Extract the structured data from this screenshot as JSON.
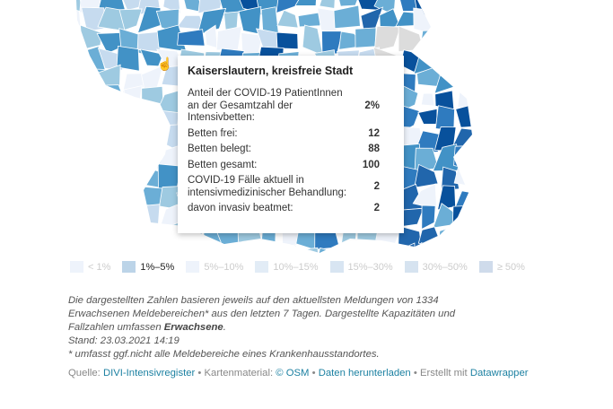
{
  "tooltip": {
    "title": "Kaiserslautern, kreisfreie Stadt",
    "rows": [
      {
        "label": "Anteil der COVID-19 PatientInnen an der Gesamtzahl der Intensivbetten:",
        "value": "2%"
      },
      {
        "label": "Betten frei:",
        "value": "12"
      },
      {
        "label": "Betten belegt:",
        "value": "88"
      },
      {
        "label": "Betten gesamt:",
        "value": "100"
      },
      {
        "label": "COVID-19 Fälle aktuell in intensivmedizinischer Behandlung:",
        "value": "2"
      },
      {
        "label": "davon invasiv beatmet:",
        "value": "2"
      }
    ]
  },
  "legend": [
    {
      "label": "< 1%",
      "color": "#eef3fb",
      "active": false
    },
    {
      "label": "1%–5%",
      "color": "#bcd4e8",
      "active": true
    },
    {
      "label": "5%–10%",
      "color": "#eef3fb",
      "active": false
    },
    {
      "label": "10%–15%",
      "color": "#e2ecf6",
      "active": false
    },
    {
      "label": "15%–30%",
      "color": "#d8e5f2",
      "active": false
    },
    {
      "label": "30%–50%",
      "color": "#d6e3f0",
      "active": false
    },
    {
      "label": "≥ 50%",
      "color": "#cfdbeb",
      "active": false
    }
  ],
  "notes": {
    "line1": "Die dargestellten Zahlen basieren jeweils auf den aktuellsten Meldungen von 1334",
    "line2": "Erwachsenen Meldebereichen* aus den letzten 7 Tagen. Dargestellte Kapazitäten und",
    "line3a": "Fallzahlen umfassen ",
    "line3b": "Erwachsene",
    "line3c": ".",
    "line4": "Stand: 23.03.2021 14:19",
    "line5": "* umfasst ggf.nicht alle Meldebereiche eines Krankenhausstandortes."
  },
  "source": {
    "prefix": "Quelle: ",
    "source_link": "DIVI-Intensivregister",
    "sep1": " • Kartenmaterial: ",
    "map_link": "© OSM",
    "sep2": " • ",
    "download_link": "Daten herunterladen",
    "sep3": " • Erstellt mit ",
    "tool_link": "Datawrapper"
  },
  "map_palette": [
    "#eef3fb",
    "#c6dbef",
    "#9ecae1",
    "#6baed6",
    "#4292c6",
    "#2f7bbf",
    "#2166ac",
    "#08519c",
    "#dcdcdc"
  ]
}
